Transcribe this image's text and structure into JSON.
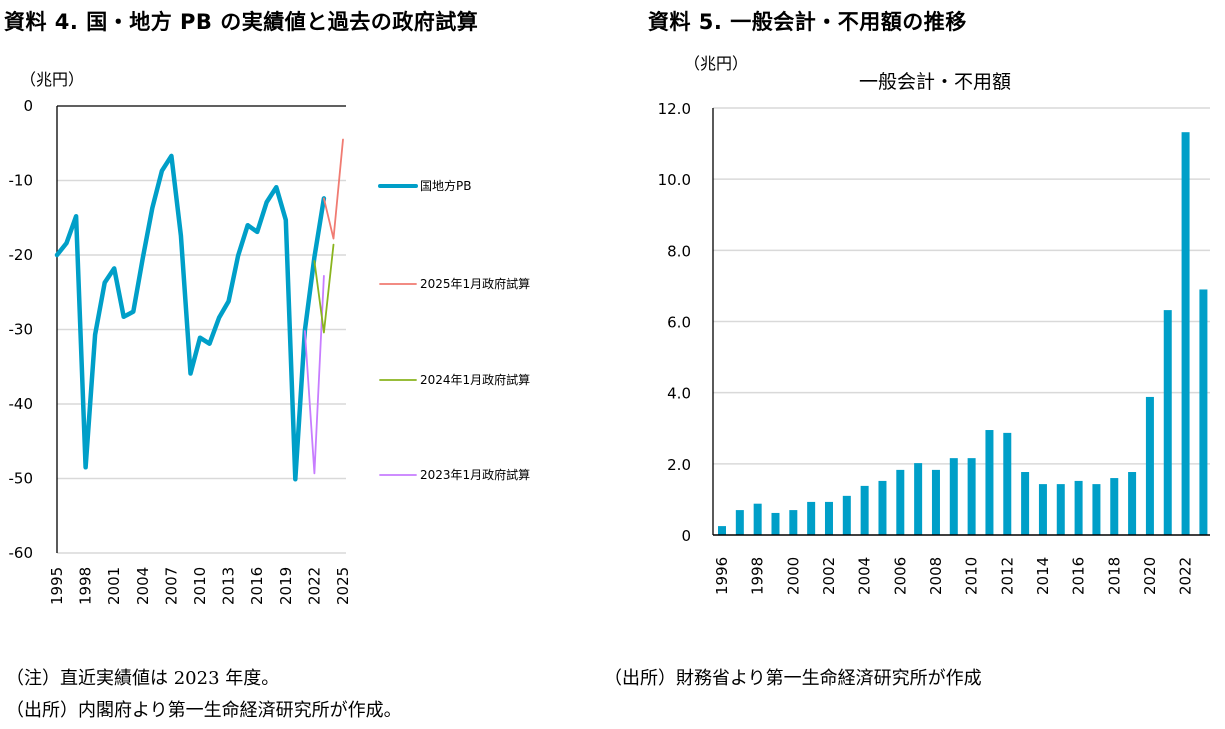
{
  "left_panel": {
    "title": "資料 4.  国・地方 PB の実績値と過去の政府試算",
    "unit": "（兆円）",
    "notes": [
      "（注）直近実績値は 2023 年度。",
      "（出所）内閣府より第一生命経済研究所が作成。"
    ]
  },
  "right_panel": {
    "title": "資料 5.  一般会計・不用額の推移",
    "unit": "（兆円）",
    "notes": [
      "（出所）財務省より第一生命経済研究所が作成"
    ]
  },
  "chart_data": [
    {
      "type": "line",
      "title": "",
      "xlabel": "",
      "ylabel": "（兆円）",
      "ylim": [
        -60,
        0
      ],
      "xlim": [
        1995,
        2025
      ],
      "yticks": [
        0,
        -10,
        -20,
        -30,
        -40,
        -50,
        -60
      ],
      "ytick_labels": [
        "0",
        "-10",
        "-20",
        "-30",
        "-40",
        "-50",
        "-60"
      ],
      "xtick_labels": [
        "1995",
        "1998",
        "2001",
        "2004",
        "2007",
        "2010",
        "2013",
        "2016",
        "2019",
        "2022",
        "2025"
      ],
      "grid": true,
      "legend_position": "right",
      "series": [
        {
          "name": "国地方PB",
          "color": "#009fc8",
          "x": [
            1995,
            1996,
            1997,
            1998,
            1999,
            2000,
            2001,
            2002,
            2003,
            2004,
            2005,
            2006,
            2007,
            2008,
            2009,
            2010,
            2011,
            2012,
            2013,
            2014,
            2015,
            2016,
            2017,
            2018,
            2019,
            2020,
            2021,
            2022,
            2023
          ],
          "values": [
            -20.0,
            -18.4,
            -14.8,
            -48.5,
            -30.7,
            -23.7,
            -21.8,
            -28.3,
            -27.6,
            -20.4,
            -13.7,
            -8.7,
            -6.7,
            -17.4,
            -35.9,
            -31.1,
            -31.9,
            -28.4,
            -26.2,
            -20.1,
            -16.0,
            -16.9,
            -12.9,
            -10.9,
            -15.3,
            -50.1,
            -30.1,
            -20.3,
            -12.4
          ]
        },
        {
          "name": "2025年1月政府試算",
          "color": "#f07b72",
          "x": [
            2023,
            2024,
            2025
          ],
          "values": [
            -12.4,
            -17.8,
            -4.5
          ]
        },
        {
          "name": "2024年1月政府試算",
          "color": "#8ab41e",
          "x": [
            2022,
            2023,
            2024
          ],
          "values": [
            -20.8,
            -30.4,
            -18.6
          ]
        },
        {
          "name": "2023年1月政府試算",
          "color": "#c77dff",
          "x": [
            2021,
            2022,
            2023
          ],
          "values": [
            -30.2,
            -49.3,
            -22.8
          ]
        }
      ]
    },
    {
      "type": "bar",
      "title": "一般会計・不用額",
      "xlabel": "",
      "ylabel": "（兆円）",
      "ylim": [
        0,
        12
      ],
      "yticks": [
        0,
        2,
        4,
        6,
        8,
        10,
        12
      ],
      "ytick_labels": [
        "0",
        "2.0",
        "4.0",
        "6.0",
        "8.0",
        "10.0",
        "12.0"
      ],
      "xtick_labels": [
        "1996",
        "1998",
        "2000",
        "2002",
        "2004",
        "2006",
        "2008",
        "2010",
        "2012",
        "2014",
        "2016",
        "2018",
        "2020",
        "2022"
      ],
      "grid": true,
      "color": "#009fc8",
      "categories": [
        "1996",
        "1997",
        "1998",
        "1999",
        "2000",
        "2001",
        "2002",
        "2003",
        "2004",
        "2005",
        "2006",
        "2007",
        "2008",
        "2009",
        "2010",
        "2011",
        "2012",
        "2013",
        "2014",
        "2015",
        "2016",
        "2017",
        "2018",
        "2019",
        "2020",
        "2021",
        "2022",
        "2023"
      ],
      "values": [
        0.25,
        0.7,
        0.88,
        0.62,
        0.7,
        0.93,
        0.93,
        1.1,
        1.38,
        1.52,
        1.83,
        2.02,
        1.83,
        2.16,
        2.16,
        2.95,
        2.87,
        1.77,
        1.43,
        1.43,
        1.52,
        1.43,
        1.6,
        1.77,
        3.88,
        6.32,
        11.32,
        6.9
      ]
    }
  ]
}
